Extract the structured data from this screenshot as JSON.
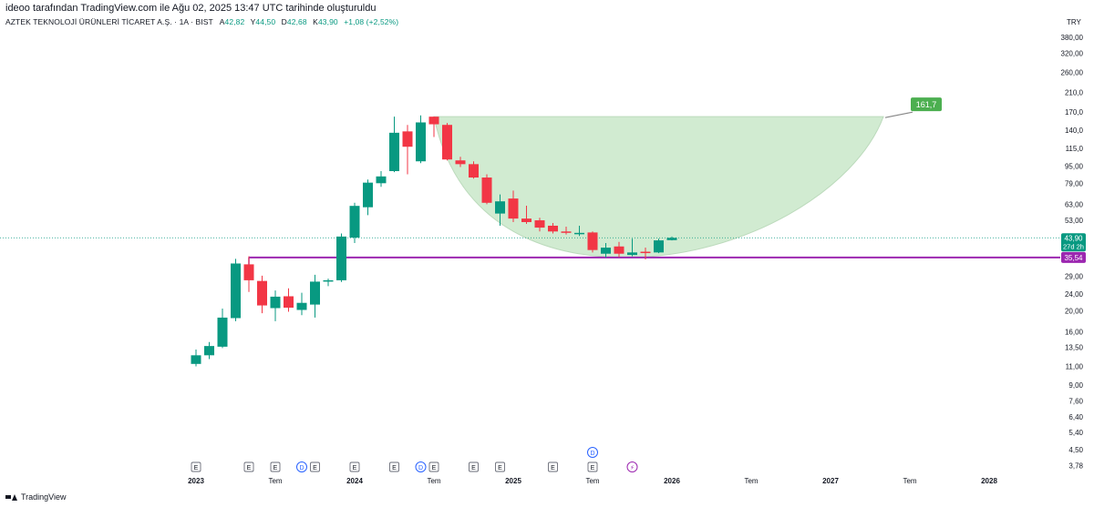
{
  "header": {
    "attribution": "ideoo tarafından TradingView.com ile Ağu 02, 2025 13:47 UTC tarihinde oluşturuldu",
    "symbol": "AZTEK TEKNOLOJİ ÜRÜNLERİ TİCARET A.Ş. · 1A · BIST",
    "ohlc": {
      "open_label": "A",
      "open": "42,82",
      "high_label": "Y",
      "high": "44,50",
      "low_label": "D",
      "low": "42,68",
      "close_label": "K",
      "close": "43,90",
      "change": "+1,08 (+2,52%)"
    }
  },
  "currency": "TRY",
  "footer": {
    "brand": "TradingView"
  },
  "colors": {
    "up": "#089981",
    "down": "#f23645",
    "purple": "#9c27b0",
    "cup_fill": "#cfeacf",
    "target_badge": "#4caf50",
    "grid": "#e0e3eb"
  },
  "chart_data": {
    "type": "candlestick",
    "title": "AZTEK TEKNOLOJİ ÜRÜNLERİ TİCARET A.Ş. · 1A · BIST",
    "interval": "1 month",
    "y_scale": "log",
    "y_range": [
      3.55,
      395
    ],
    "y_ticks": [
      "380,00",
      "320,00",
      "260,00",
      "210,0",
      "170,0",
      "140,0",
      "115,0",
      "95,00",
      "79,00",
      "63,00",
      "53,00",
      "43,90",
      "35,54",
      "29,00",
      "24,00",
      "20,00",
      "16,00",
      "13,50",
      "11,00",
      "9,00",
      "7,60",
      "6,40",
      "5,40",
      "4,50",
      "3,78"
    ],
    "x_labels": [
      "2023",
      "Tem",
      "2024",
      "Tem",
      "2025",
      "Tem",
      "2026",
      "Tem",
      "2027",
      "Tem",
      "2028"
    ],
    "x_label_month_index": [
      0,
      6,
      12,
      18,
      24,
      30,
      36,
      42,
      48,
      54,
      60
    ],
    "candles": [
      {
        "o": 11.3,
        "h": 13.2,
        "l": 11.0,
        "c": 12.4
      },
      {
        "o": 12.4,
        "h": 14.3,
        "l": 11.9,
        "c": 13.7
      },
      {
        "o": 13.6,
        "h": 20.5,
        "l": 13.4,
        "c": 18.6
      },
      {
        "o": 18.5,
        "h": 35.0,
        "l": 17.9,
        "c": 33.3
      },
      {
        "o": 33.0,
        "h": 36.0,
        "l": 24.5,
        "c": 27.8
      },
      {
        "o": 27.6,
        "h": 29.2,
        "l": 19.5,
        "c": 21.2
      },
      {
        "o": 20.6,
        "h": 24.9,
        "l": 17.9,
        "c": 23.3
      },
      {
        "o": 23.4,
        "h": 25.5,
        "l": 19.8,
        "c": 20.7
      },
      {
        "o": 20.2,
        "h": 24.3,
        "l": 19.1,
        "c": 21.8
      },
      {
        "o": 21.4,
        "h": 29.5,
        "l": 18.6,
        "c": 27.4
      },
      {
        "o": 27.4,
        "h": 28.3,
        "l": 26.1,
        "c": 27.8
      },
      {
        "o": 27.8,
        "h": 46.0,
        "l": 27.3,
        "c": 44.5
      },
      {
        "o": 44.0,
        "h": 64.0,
        "l": 41.5,
        "c": 61.9
      },
      {
        "o": 61.0,
        "h": 82.2,
        "l": 56.0,
        "c": 79.5
      },
      {
        "o": 79.0,
        "h": 90.0,
        "l": 76.0,
        "c": 85.0
      },
      {
        "o": 90.0,
        "h": 161.7,
        "l": 89.0,
        "c": 136.0
      },
      {
        "o": 138.0,
        "h": 148.0,
        "l": 87.0,
        "c": 117.0
      },
      {
        "o": 100.0,
        "h": 164.0,
        "l": 98.0,
        "c": 152.0
      },
      {
        "o": 161.7,
        "h": 162.0,
        "l": 130.0,
        "c": 149.0
      },
      {
        "o": 148.0,
        "h": 151.0,
        "l": 101.0,
        "c": 102.0
      },
      {
        "o": 101.0,
        "h": 105.0,
        "l": 94.0,
        "c": 97.0
      },
      {
        "o": 97.0,
        "h": 100.0,
        "l": 83.0,
        "c": 84.0
      },
      {
        "o": 84.0,
        "h": 87.0,
        "l": 63.0,
        "c": 64.0
      },
      {
        "o": 57.0,
        "h": 70.0,
        "l": 50.0,
        "c": 65.0
      },
      {
        "o": 67.0,
        "h": 73.0,
        "l": 52.0,
        "c": 54.0
      },
      {
        "o": 54.0,
        "h": 62.0,
        "l": 51.0,
        "c": 52.0
      },
      {
        "o": 53.0,
        "h": 54.5,
        "l": 47.0,
        "c": 49.0
      },
      {
        "o": 50.0,
        "h": 51.5,
        "l": 46.0,
        "c": 47.0
      },
      {
        "o": 47.0,
        "h": 49.5,
        "l": 45.5,
        "c": 46.8
      },
      {
        "o": 46.3,
        "h": 50.0,
        "l": 44.8,
        "c": 46.3
      },
      {
        "o": 46.5,
        "h": 47.0,
        "l": 37.5,
        "c": 38.5
      },
      {
        "o": 37.0,
        "h": 41.5,
        "l": 35.5,
        "c": 39.5
      },
      {
        "o": 40.0,
        "h": 42.0,
        "l": 35.6,
        "c": 37.0
      },
      {
        "o": 36.5,
        "h": 43.5,
        "l": 36.0,
        "c": 37.5
      },
      {
        "o": 37.8,
        "h": 39.5,
        "l": 34.8,
        "c": 37.5
      },
      {
        "o": 37.5,
        "h": 43.5,
        "l": 37.2,
        "c": 42.7
      },
      {
        "o": 42.82,
        "h": 44.5,
        "l": 42.68,
        "c": 43.9
      }
    ],
    "horizontal_levels": [
      {
        "name": "resistance-line",
        "value": 35.54,
        "label": "35,54",
        "color": "#9c27b0"
      }
    ],
    "last_price": {
      "value": 43.9,
      "label": "43,90",
      "countdown": "27d 2h"
    },
    "cup_pattern": {
      "rim_price": 161.7,
      "bottom_price": 35.54,
      "target_label": "161,7",
      "start_month": 18,
      "end_month": 52
    },
    "events": [
      {
        "month": 0,
        "type": "E",
        "label": "E"
      },
      {
        "month": 4,
        "type": "E",
        "label": "E"
      },
      {
        "month": 6,
        "type": "E",
        "label": "E"
      },
      {
        "month": 8,
        "type": "D",
        "label": "D"
      },
      {
        "month": 9,
        "type": "E",
        "label": "E"
      },
      {
        "month": 12,
        "type": "E",
        "label": "E"
      },
      {
        "month": 15,
        "type": "E",
        "label": "E"
      },
      {
        "month": 17,
        "type": "D",
        "label": "D"
      },
      {
        "month": 18,
        "type": "E",
        "label": "E"
      },
      {
        "month": 21,
        "type": "E",
        "label": "E"
      },
      {
        "month": 23,
        "type": "E",
        "label": "E"
      },
      {
        "month": 27,
        "type": "E",
        "label": "E"
      },
      {
        "month": 30,
        "type": "E",
        "label": "E"
      },
      {
        "month": 30,
        "type": "D",
        "label": "D",
        "row": 2
      },
      {
        "month": 33,
        "type": "split",
        "label": "⚡"
      }
    ]
  }
}
